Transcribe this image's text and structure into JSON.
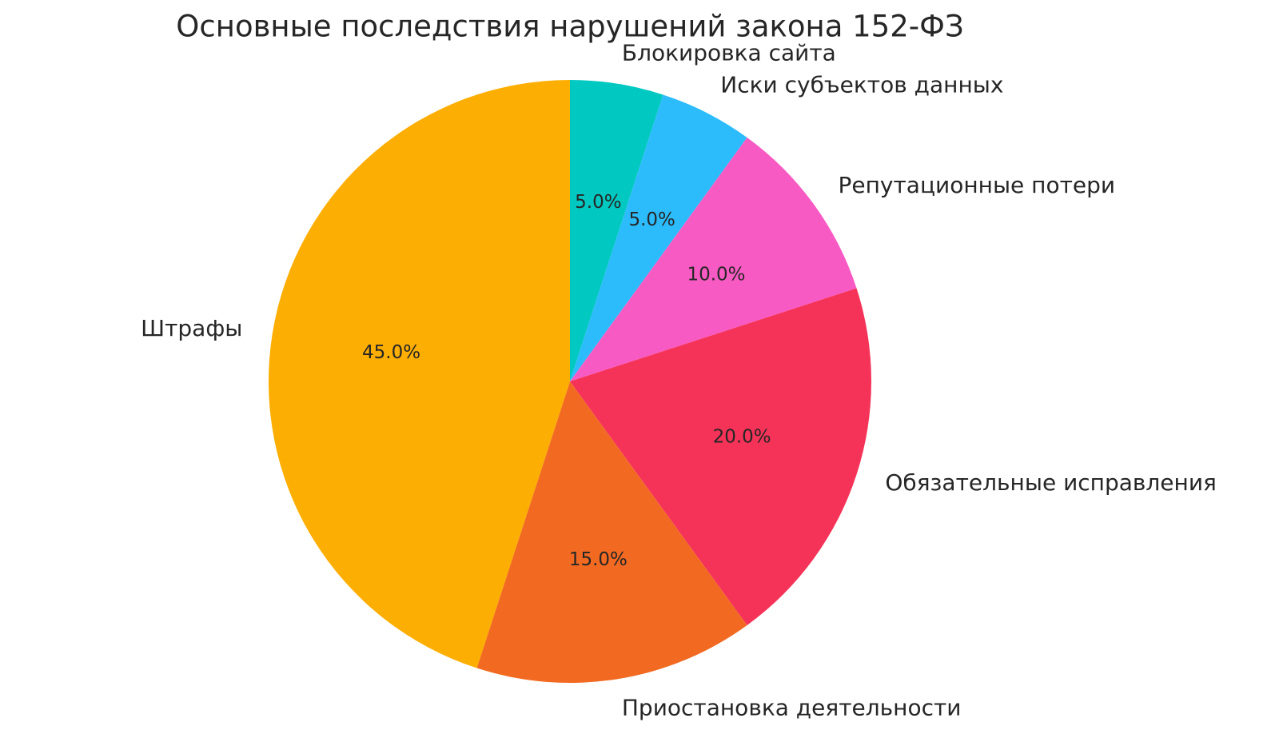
{
  "chart_data": {
    "type": "pie",
    "title": "Основные последствия нарушений закона 152-ФЗ",
    "categories": [
      "Блокировка сайта",
      "Иски субъектов данных",
      "Репутационные потери",
      "Обязательные исправления",
      "Приостановка деятельности",
      "Штрафы"
    ],
    "values": [
      5,
      5,
      10,
      20,
      15,
      45
    ],
    "value_labels": [
      "5.0%",
      "5.0%",
      "10.0%",
      "20.0%",
      "15.0%",
      "45.0%"
    ],
    "colors": [
      "#01c9c1",
      "#2cbcfc",
      "#f85ac4",
      "#f53358",
      "#f26a22",
      "#fdae02"
    ]
  }
}
